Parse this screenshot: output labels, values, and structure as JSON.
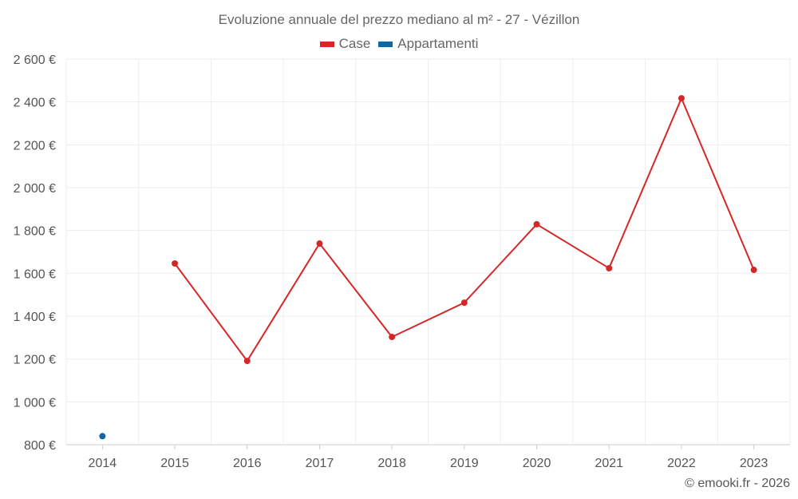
{
  "chart_data": {
    "type": "line",
    "title": "Evoluzione annuale del prezzo mediano al m² - 27 - Vézillon",
    "categories": [
      "2014",
      "2015",
      "2016",
      "2017",
      "2018",
      "2019",
      "2020",
      "2021",
      "2022",
      "2023"
    ],
    "series": [
      {
        "name": "Case",
        "color": "#d62728",
        "values": [
          null,
          1646,
          1191,
          1739,
          1303,
          1463,
          1829,
          1624,
          2417,
          1616
        ]
      },
      {
        "name": "Appartamenti",
        "color": "#0868a8",
        "values": [
          840,
          null,
          null,
          null,
          null,
          null,
          null,
          null,
          null,
          null
        ]
      }
    ],
    "ylim": [
      800,
      2600
    ],
    "yticks": [
      800,
      1000,
      1200,
      1400,
      1600,
      1800,
      2000,
      2200,
      2400,
      2600
    ],
    "ytick_labels": [
      "800 €",
      "1 000 €",
      "1 200 €",
      "1 400 €",
      "1 600 €",
      "1 800 €",
      "2 000 €",
      "2 200 €",
      "2 400 €",
      "2 600 €"
    ],
    "grid": true,
    "legend_position": "top-center"
  },
  "credit": "© emooki.fr - 2026"
}
